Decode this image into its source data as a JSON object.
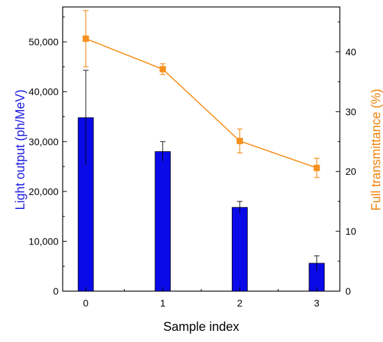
{
  "chart_data": {
    "type": "bar+line",
    "title": "",
    "xlabel": "Sample index",
    "y_left": {
      "label": "Light output (ph/MeV)",
      "label_color": "#1a1adf",
      "range": [
        0,
        57000
      ],
      "ticks": [
        0,
        10000,
        20000,
        30000,
        40000,
        50000
      ],
      "tick_labels": [
        "0",
        "10,000",
        "20,000",
        "30,000",
        "40,000",
        "50,000"
      ]
    },
    "y_right": {
      "label": "Full transmittance (%)",
      "label_color": "#f0820a",
      "range": [
        0,
        47.5
      ],
      "ticks": [
        0,
        10,
        20,
        30,
        40
      ],
      "tick_labels": [
        "0",
        "10",
        "20",
        "30",
        "40"
      ]
    },
    "x": {
      "range": [
        -0.3,
        3.3
      ],
      "ticks": [
        0,
        1,
        2,
        3
      ],
      "tick_labels": [
        "0",
        "1",
        "2",
        "3"
      ]
    },
    "bars": {
      "axis": "left",
      "color": "#0a0ae8",
      "x": [
        0,
        1,
        2,
        3
      ],
      "values": [
        34800,
        28000,
        16800,
        5600
      ],
      "error": [
        9500,
        2000,
        1200,
        1500
      ]
    },
    "line": {
      "axis": "right",
      "color": "#f5901e",
      "marker": "square",
      "x": [
        0,
        1,
        2,
        3
      ],
      "values": [
        42.2,
        37.1,
        25.1,
        20.6
      ],
      "error": [
        4.7,
        0.9,
        2.0,
        1.6
      ]
    },
    "grid": false,
    "legend": "none"
  }
}
